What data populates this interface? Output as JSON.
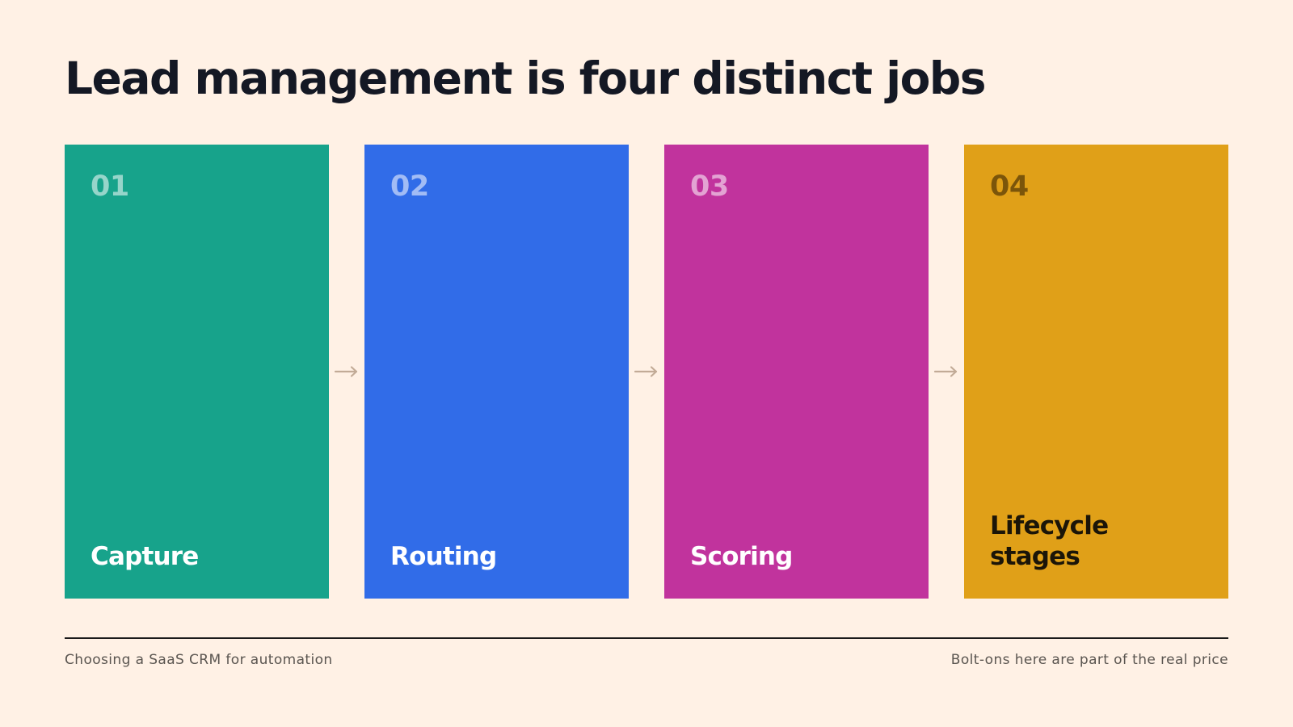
{
  "slide": {
    "title": "Lead management is four distinct jobs",
    "steps": [
      {
        "number": "01",
        "label": "Capture",
        "color": "#17a38b"
      },
      {
        "number": "02",
        "label": "Routing",
        "color": "#316ce8"
      },
      {
        "number": "03",
        "label": "Scoring",
        "color": "#c1339d"
      },
      {
        "number": "04",
        "label": "Lifecycle\nstages",
        "color": "#e0a018"
      }
    ],
    "connector_icon": "right-arrow",
    "footer": {
      "left": "Choosing a SaaS CRM for automation",
      "right": "Bolt-ons here are part of the real price"
    }
  },
  "colors": {
    "background": "#fff1e5",
    "title": "#141824",
    "arrow": "#c2ab97"
  }
}
